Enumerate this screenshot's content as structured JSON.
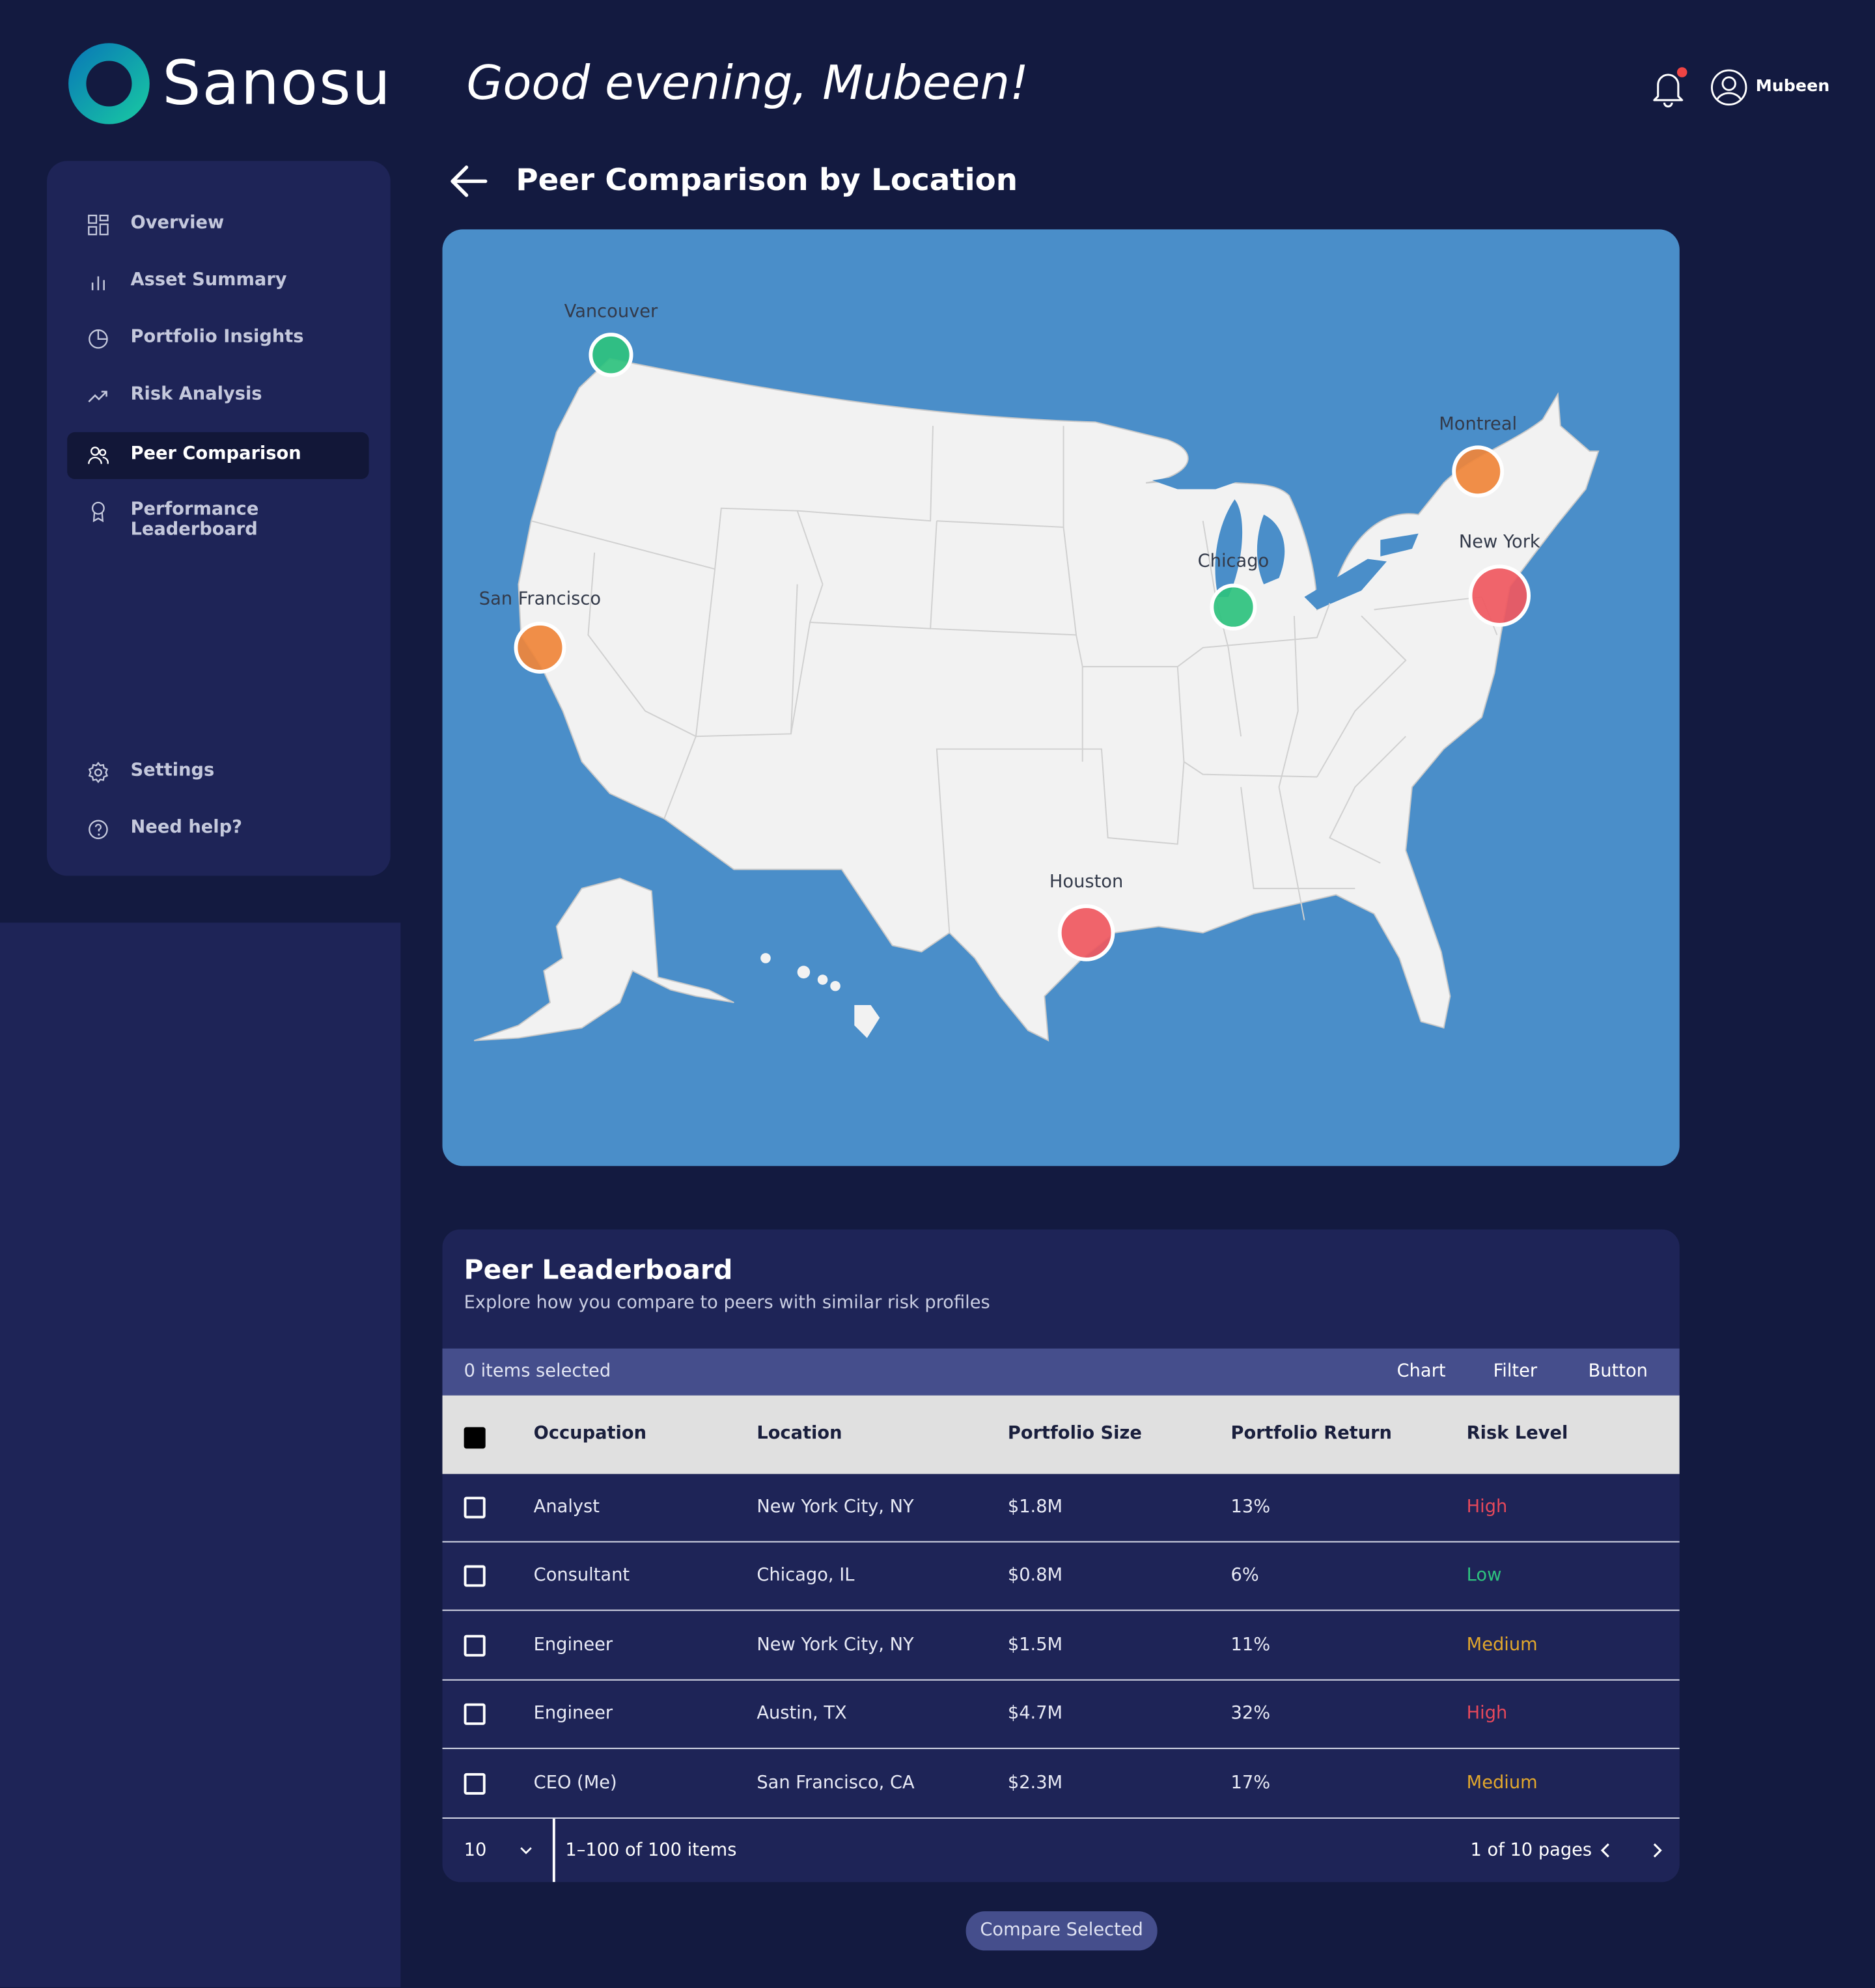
{
  "app": {
    "brand": "Sanosu",
    "greeting": "Good evening, Mubeen!",
    "user_name": "Mubeen"
  },
  "sidebar": {
    "items": [
      {
        "label": "Overview",
        "icon": "grid-icon"
      },
      {
        "label": "Asset Summary",
        "icon": "bar-chart-icon"
      },
      {
        "label": "Portfolio Insights",
        "icon": "pie-chart-icon"
      },
      {
        "label": "Risk Analysis",
        "icon": "trend-up-icon"
      },
      {
        "label": "Peer Comparison",
        "icon": "users-icon",
        "active": true
      },
      {
        "label": "Performance Leaderboard",
        "icon": "award-icon"
      }
    ],
    "bottom_items": [
      {
        "label": "Settings",
        "icon": "gear-icon"
      },
      {
        "label": "Need help?",
        "icon": "help-circle-icon"
      }
    ]
  },
  "page": {
    "title": "Peer Comparison by Location"
  },
  "map": {
    "markers": [
      {
        "label": "Vancouver",
        "color": "#2ec27e"
      },
      {
        "label": "Montreal",
        "color": "#f0853a"
      },
      {
        "label": "New York",
        "color": "#f0585f"
      },
      {
        "label": "Chicago",
        "color": "#2ec27e"
      },
      {
        "label": "San Francisco",
        "color": "#f0853a"
      },
      {
        "label": "Houston",
        "color": "#f0585f"
      }
    ]
  },
  "leaderboard": {
    "title": "Peer Leaderboard",
    "subtitle": "Explore how you compare to peers with similar risk profiles",
    "selected_text": "0 items selected",
    "toolbar": {
      "chart": "Chart",
      "filter": "Filter",
      "button": "Button"
    },
    "columns": [
      "Occupation",
      "Location",
      "Portfolio Size",
      "Portfolio Return",
      "Risk Level"
    ],
    "rows": [
      {
        "occupation": "Analyst",
        "location": "New York City, NY",
        "size": "$1.8M",
        "return": "13%",
        "risk": "High"
      },
      {
        "occupation": "Consultant",
        "location": "Chicago, IL",
        "size": "$0.8M",
        "return": "6%",
        "risk": "Low"
      },
      {
        "occupation": "Engineer",
        "location": "New York City, NY",
        "size": "$1.5M",
        "return": "11%",
        "risk": "Medium"
      },
      {
        "occupation": "Engineer",
        "location": "Austin, TX",
        "size": "$4.7M",
        "return": "32%",
        "risk": "High"
      },
      {
        "occupation": "CEO (Me)",
        "location": "San Francisco, CA",
        "size": "$2.3M",
        "return": "17%",
        "risk": "Medium"
      }
    ],
    "risk_colors": {
      "High": "#e5485b",
      "Low": "#2ec27e",
      "Medium": "#e2a72c"
    },
    "footer": {
      "per_page": "10",
      "range": "1–100 of 100 items",
      "pages": "1 of 10 pages"
    }
  },
  "actions": {
    "compare": "Compare Selected"
  },
  "colors": {
    "background": "#131a40",
    "panel": "#1e2457",
    "accent": "#454e8c",
    "map_water": "#4a8ec9",
    "logo": "#00a8b5"
  }
}
